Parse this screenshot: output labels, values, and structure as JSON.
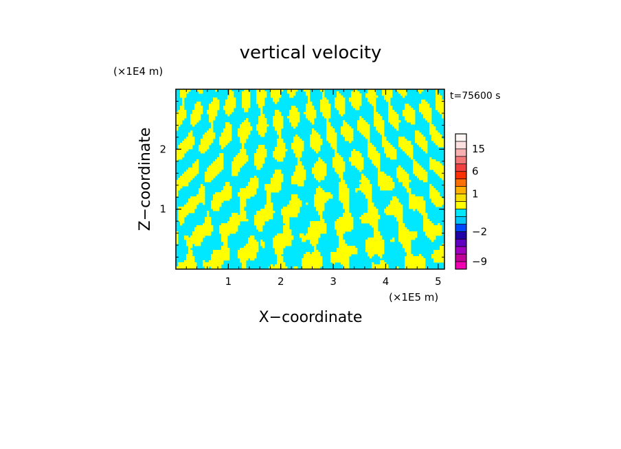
{
  "chart_data": {
    "type": "heatmap",
    "title": "vertical velocity",
    "xlabel": "X−coordinate",
    "ylabel": "Z−coordinate",
    "x_unit": "(×1E5 m)",
    "y_unit": "(×1E4 m)",
    "time_label": "t=75600 s",
    "xlim": [
      0,
      5.12
    ],
    "ylim": [
      0,
      3.0
    ],
    "x_ticks": [
      {
        "value": 1,
        "label": "1"
      },
      {
        "value": 2,
        "label": "2"
      },
      {
        "value": 3,
        "label": "3"
      },
      {
        "value": 4,
        "label": "4"
      },
      {
        "value": 5,
        "label": "5"
      }
    ],
    "y_ticks": [
      {
        "value": 1,
        "label": "1"
      },
      {
        "value": 2,
        "label": "2"
      }
    ],
    "field_colors": {
      "positive": "#ffff00",
      "negative": "#00e8ff"
    },
    "colorbar": {
      "levels": [
        -12,
        -9,
        -6,
        -4,
        -3,
        -2,
        -1,
        -0.5,
        0,
        0.5,
        1,
        2,
        4,
        6,
        9,
        12,
        15,
        18,
        25
      ],
      "colors": [
        "#f000b0",
        "#c00098",
        "#a000c0",
        "#6000c0",
        "#2000a8",
        "#0048ff",
        "#00c8ff",
        "#00e8ff",
        "#ffff00",
        "#f8e000",
        "#ffb000",
        "#ff7000",
        "#ff3000",
        "#f04040",
        "#f47878",
        "#f8b0b0",
        "#fce0e0",
        "#fff6f6"
      ],
      "tick_labels": [
        {
          "value": 15,
          "label": "15"
        },
        {
          "value": 6,
          "label": "6"
        },
        {
          "value": 1,
          "label": "1"
        },
        {
          "value": -2,
          "label": "−2"
        },
        {
          "value": -9,
          "label": "−9"
        }
      ]
    }
  }
}
